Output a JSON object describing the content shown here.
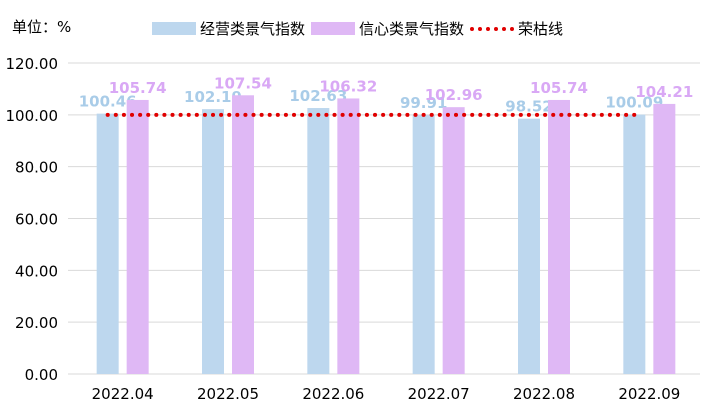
{
  "unit_label": "单位：%",
  "legend": {
    "business": "经营类景气指数",
    "confidence": "信心类景气指数",
    "threshold": "荣枯线"
  },
  "colors": {
    "business": "#bdd7ee",
    "confidence": "#dfb8f5",
    "threshold": "#e00000",
    "grid": "#d9d9d9"
  },
  "chart_data": {
    "type": "bar",
    "categories": [
      "2022.04",
      "2022.05",
      "2022.06",
      "2022.07",
      "2022.08",
      "2022.09"
    ],
    "series": [
      {
        "name": "经营类景气指数",
        "values": [
          100.46,
          102.19,
          102.63,
          99.91,
          98.52,
          100.09
        ]
      },
      {
        "name": "信心类景气指数",
        "values": [
          105.74,
          107.54,
          106.32,
          102.96,
          105.74,
          104.21
        ]
      }
    ],
    "threshold": {
      "name": "荣枯线",
      "value": 100
    },
    "ylim": [
      0,
      120
    ],
    "yticks": [
      "0.00",
      "20.00",
      "40.00",
      "60.00",
      "80.00",
      "100.00",
      "120.00"
    ],
    "ytick_values": [
      0,
      20,
      40,
      60,
      80,
      100,
      120
    ],
    "grid": true,
    "legend_position": "top"
  }
}
